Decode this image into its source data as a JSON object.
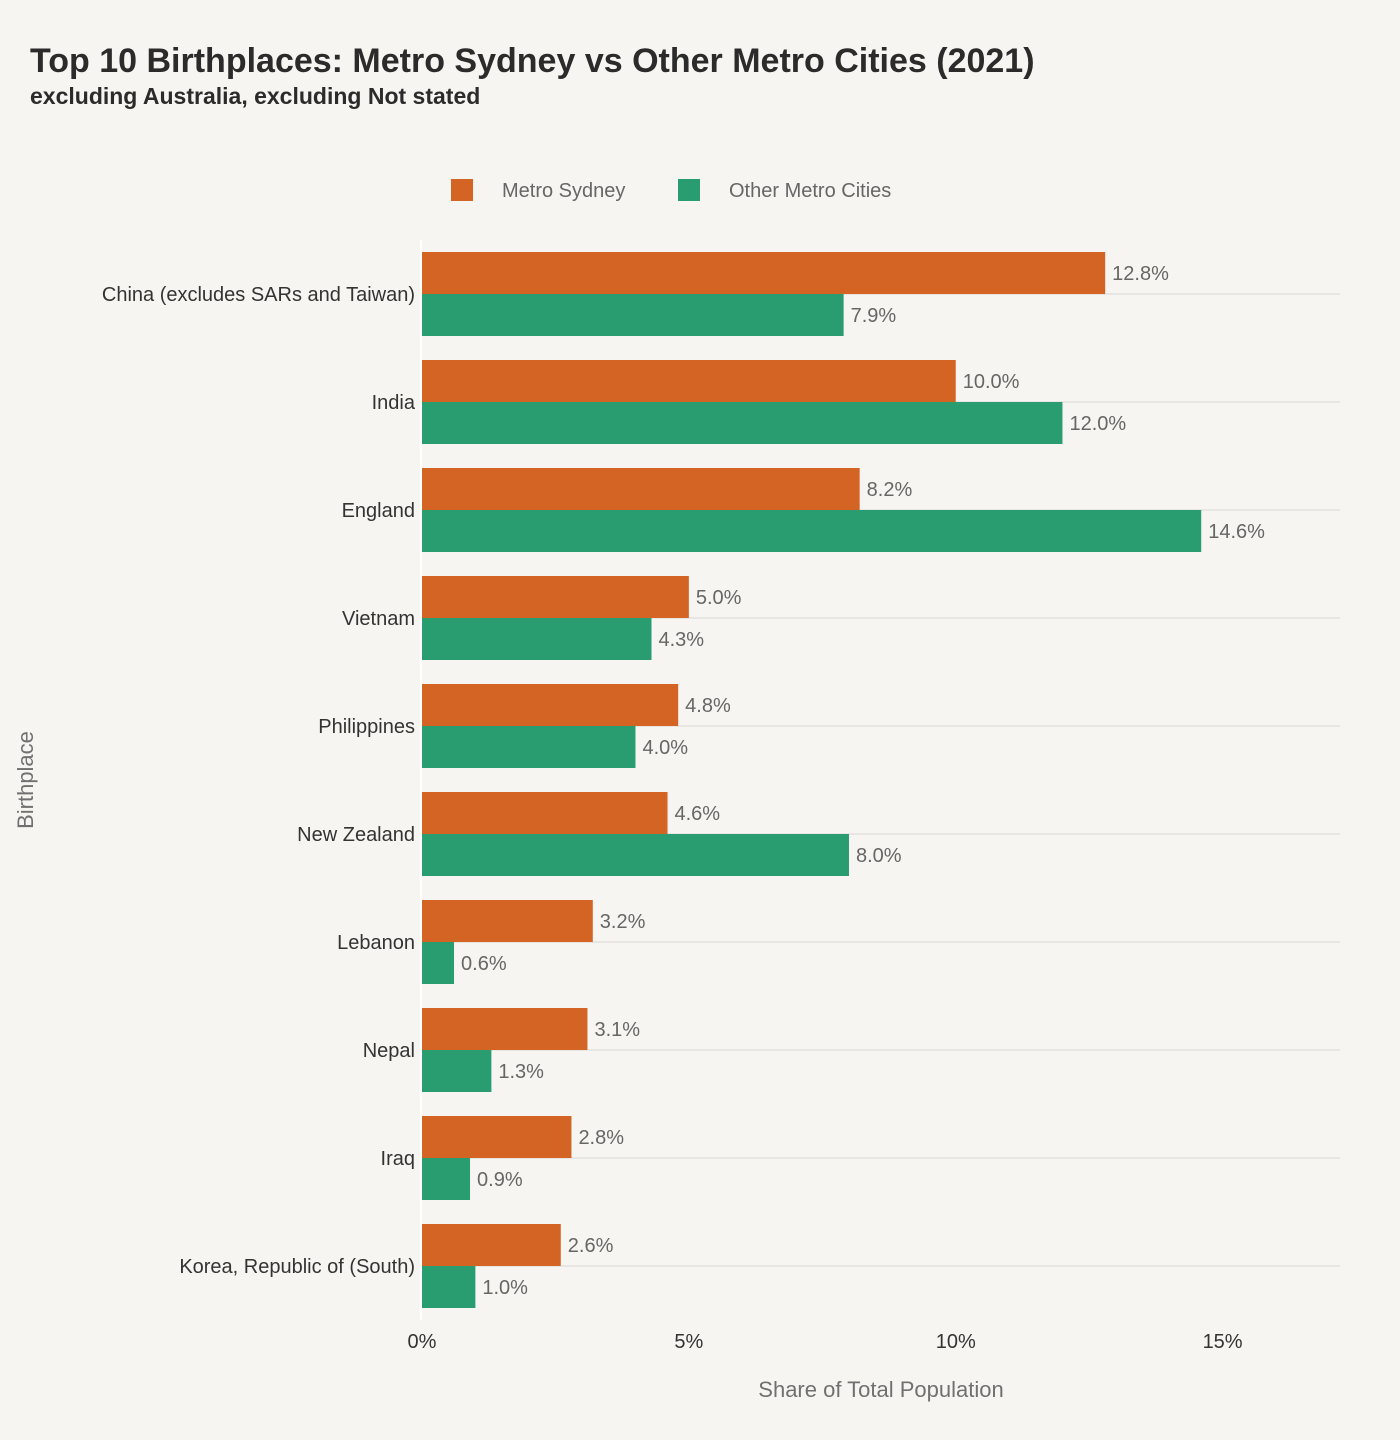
{
  "chart_data": {
    "type": "bar",
    "orientation": "horizontal",
    "title": "Top 10 Birthplaces: Metro Sydney vs Other Metro Cities (2021)",
    "subtitle": "excluding Australia, excluding Not stated",
    "xlabel": "Share of Total Population",
    "ylabel": "Birthplace",
    "xlim": [
      0,
      17.2
    ],
    "xticks": [
      {
        "value": 0,
        "label": "0%"
      },
      {
        "value": 5,
        "label": "5%"
      },
      {
        "value": 10,
        "label": "10%"
      },
      {
        "value": 15,
        "label": "15%"
      }
    ],
    "legend_position": "top-center",
    "grid": true,
    "categories": [
      "China (excludes SARs and Taiwan)",
      "India",
      "England",
      "Vietnam",
      "Philippines",
      "New Zealand",
      "Lebanon",
      "Nepal",
      "Iraq",
      "Korea, Republic of (South)"
    ],
    "series": [
      {
        "name": "Metro Sydney",
        "color": "#d46424",
        "values": [
          12.8,
          10.0,
          8.2,
          5.0,
          4.8,
          4.6,
          3.2,
          3.1,
          2.8,
          2.6
        ],
        "labels": [
          "12.8%",
          "10.0%",
          "8.2%",
          "5.0%",
          "4.8%",
          "4.6%",
          "3.2%",
          "3.1%",
          "2.8%",
          "2.6%"
        ]
      },
      {
        "name": "Other Metro Cities",
        "color": "#2a9d70",
        "values": [
          7.9,
          12.0,
          14.6,
          4.3,
          4.0,
          8.0,
          0.6,
          1.3,
          0.9,
          1.0
        ],
        "labels": [
          "7.9%",
          "12.0%",
          "14.6%",
          "4.3%",
          "4.0%",
          "8.0%",
          "0.6%",
          "1.3%",
          "0.9%",
          "1.0%"
        ]
      }
    ]
  }
}
